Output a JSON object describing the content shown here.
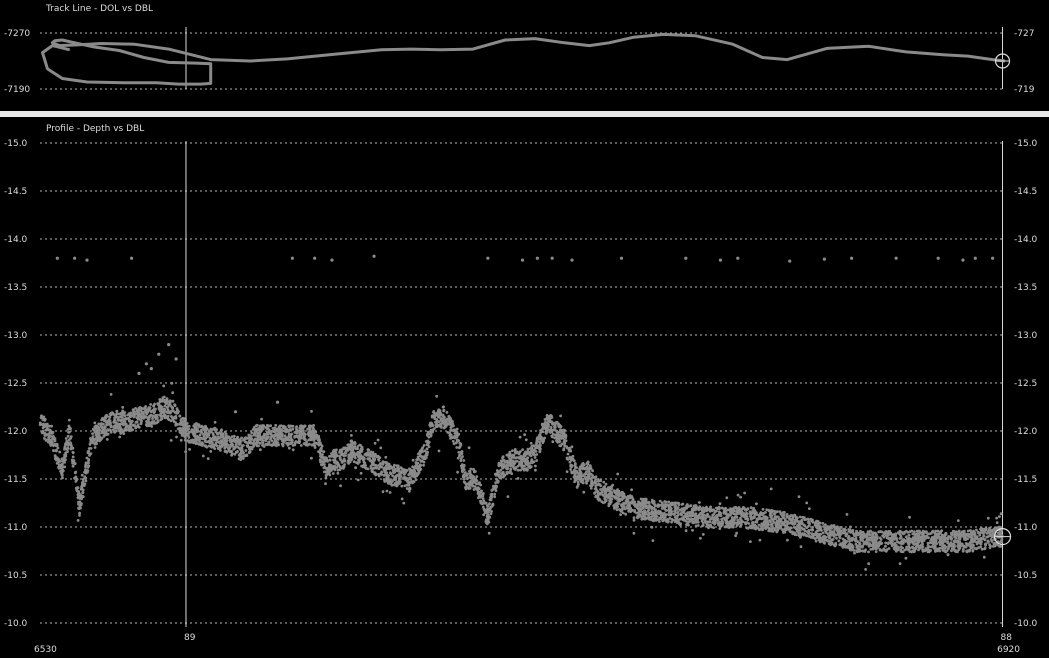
{
  "colors": {
    "background": "#000000",
    "grid": "#b4b4b4",
    "data": "#8a8a8a",
    "cursor": "#dcdcdc",
    "divider": "#e8e8e8"
  },
  "chart_data": [
    {
      "type": "line",
      "title": "Track Line - DOL vs DBL",
      "xlabel": "",
      "ylabel": "",
      "xlim": [
        6530,
        6920
      ],
      "ylim": [
        -7190,
        -7270
      ],
      "y_ticks": [
        -7270,
        -7190
      ],
      "y_tick_labels": [
        "-7270",
        "-7190"
      ],
      "right_tick_labels": [
        "-727",
        "-719"
      ],
      "grid": true,
      "series": [
        {
          "x": [
            6542,
            6535,
            6531,
            6533,
            6539,
            6549,
            6564,
            6577,
            6586,
            6595,
            6599,
            6599,
            6593,
            6582,
            6572,
            6562,
            6552,
            6544,
            6539,
            6536,
            6535,
            6538,
            6545,
            6555,
            6568,
            6582,
            6599,
            6615,
            6630,
            6650,
            6668,
            6680,
            6692,
            6705,
            6718,
            6730,
            6742,
            6752,
            6760,
            6770,
            6782,
            6795,
            6810,
            6822,
            6832,
            6848,
            6865,
            6880,
            6895,
            6905,
            6915,
            6920
          ],
          "y": [
            -7246,
            -7252,
            -7242,
            -7219,
            -7205,
            -7200,
            -7199,
            -7199,
            -7197,
            -7197,
            -7198,
            -7226,
            -7227,
            -7228,
            -7235,
            -7245,
            -7250,
            -7256,
            -7260,
            -7259,
            -7256,
            -7252,
            -7253,
            -7255,
            -7254,
            -7247,
            -7232,
            -7230,
            -7233,
            -7240,
            -7246,
            -7247,
            -7246,
            -7247,
            -7260,
            -7262,
            -7256,
            -7252,
            -7256,
            -7264,
            -7268,
            -7266,
            -7254,
            -7235,
            -7232,
            -7248,
            -7251,
            -7243,
            -7239,
            -7237,
            -7232,
            -7230
          ]
        }
      ],
      "cursors": [
        {
          "x": 6589,
          "label": ""
        },
        {
          "x": 6919,
          "label": ""
        }
      ],
      "markers": [
        {
          "x": 6919,
          "y": -7230,
          "shape": "circle-crosshair"
        }
      ]
    },
    {
      "type": "scatter",
      "title": "Profile - Depth vs DBL",
      "xlabel": "",
      "ylabel": "",
      "xlim": [
        6530,
        6920
      ],
      "ylim": [
        -10.0,
        -15.0
      ],
      "y_ticks": [
        -15.0,
        -14.5,
        -14.0,
        -13.5,
        -13.0,
        -12.5,
        -12.0,
        -11.5,
        -11.0,
        -10.5,
        -10.0
      ],
      "y_tick_labels": [
        "-15.0",
        "-14.5",
        "-14.0",
        "-13.5",
        "-13.0",
        "-12.5",
        "-12.0",
        "-11.5",
        "-11.0",
        "-10.5",
        "-10.0"
      ],
      "right_tick_labels": [
        "-15.0",
        "-14.5",
        "-14.0",
        "-13.5",
        "-13.0",
        "-12.5",
        "-12.0",
        "-11.5",
        "-11.0",
        "-10.5",
        "-10.0"
      ],
      "x_tick_labels": [
        "6530",
        "6920"
      ],
      "grid": true,
      "cursors": [
        {
          "x": 6589,
          "label": "89"
        },
        {
          "x": 6919,
          "label": "88"
        }
      ],
      "markers": [
        {
          "x": 6919,
          "y": -10.9,
          "shape": "circle-crosshair"
        }
      ],
      "outliers_x": [
        6537,
        6544,
        6549,
        6567,
        6570,
        6573,
        6575,
        6578,
        6582,
        6585,
        6609,
        6626,
        6632,
        6641,
        6648,
        6665,
        6711,
        6725,
        6731,
        6737,
        6745,
        6765,
        6791,
        6805,
        6812,
        6833,
        6847,
        6858,
        6876,
        6893,
        6903,
        6908,
        6915
      ],
      "outliers_y": [
        -13.8,
        -13.8,
        -13.78,
        -13.8,
        -12.6,
        -12.7,
        -12.65,
        -12.8,
        -12.9,
        -12.75,
        -12.2,
        -12.3,
        -13.8,
        -13.8,
        -13.78,
        -13.82,
        -13.8,
        -13.78,
        -13.8,
        -13.8,
        -13.78,
        -13.8,
        -13.8,
        -13.78,
        -13.8,
        -13.77,
        -13.79,
        -13.8,
        -13.8,
        -13.8,
        -13.78,
        -13.8,
        -13.8
      ],
      "trend_x": [
        6530,
        6535,
        6539,
        6542,
        6546,
        6551,
        6556,
        6561,
        6566,
        6571,
        6575,
        6580,
        6584,
        6589,
        6596,
        6604,
        6612,
        6617,
        6625,
        6633,
        6641,
        6646,
        6649,
        6652,
        6656,
        6663,
        6671,
        6680,
        6686,
        6689,
        6693,
        6699,
        6702,
        6706,
        6711,
        6715,
        6718,
        6722,
        6727,
        6730,
        6735,
        6742,
        6747,
        6751,
        6755,
        6762,
        6770,
        6785,
        6800,
        6815,
        6830,
        6845,
        6860,
        6875,
        6890,
        6905,
        6919
      ],
      "trend_y": [
        -12.1,
        -11.9,
        -11.6,
        -12.0,
        -11.2,
        -11.9,
        -12.05,
        -12.1,
        -12.1,
        -12.15,
        -12.15,
        -12.25,
        -12.2,
        -12.0,
        -11.95,
        -11.9,
        -11.8,
        -11.95,
        -11.95,
        -11.95,
        -11.95,
        -11.6,
        -11.7,
        -11.7,
        -11.8,
        -11.7,
        -11.55,
        -11.5,
        -11.8,
        -12.1,
        -12.15,
        -11.9,
        -11.5,
        -11.5,
        -11.1,
        -11.55,
        -11.65,
        -11.7,
        -11.7,
        -11.75,
        -12.1,
        -11.9,
        -11.5,
        -11.6,
        -11.4,
        -11.3,
        -11.2,
        -11.15,
        -11.1,
        -11.1,
        -11.05,
        -10.95,
        -10.85,
        -10.85,
        -10.85,
        -10.85,
        -10.9
      ]
    }
  ]
}
